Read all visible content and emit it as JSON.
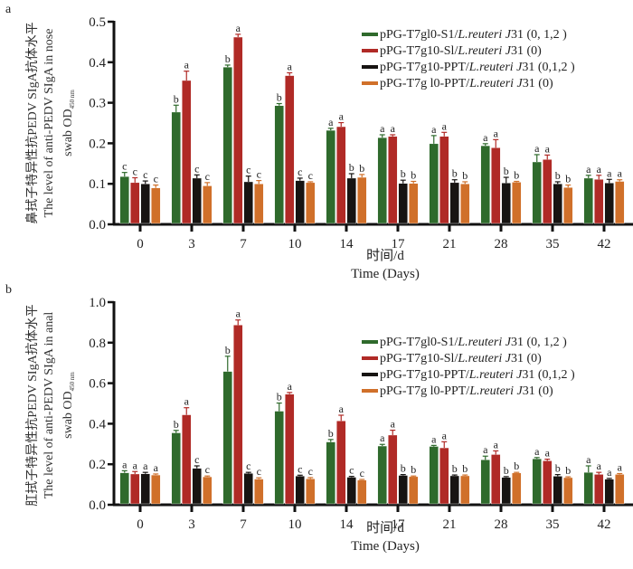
{
  "colors": {
    "green": "#2f6a2c",
    "red": "#b02a26",
    "black": "#171412",
    "orange": "#d0702a"
  },
  "legend": [
    {
      "prefix": "pPG-T7gl0-S1/",
      "italic": "L.reuteri J",
      "suffix": "31 (0, 1,2 )",
      "color_key": "green"
    },
    {
      "prefix": "pPG-T7g10-Sl/",
      "italic": "L.reuteri J",
      "suffix": "31 (0)",
      "color_key": "red"
    },
    {
      "prefix": "pPG-T7g10-PPT/",
      "italic": "L.reuteri J",
      "suffix": "31 (0,1,2 )",
      "color_key": "black"
    },
    {
      "prefix": "pPG-T7g l0-PPT/",
      "italic": "L.reuteri J",
      "suffix": "31 (0)",
      "color_key": "orange"
    }
  ],
  "chart_data": [
    {
      "type": "bar",
      "panel_label": "a",
      "title": "",
      "ylabel_cn": "鼻拭子特异性抗PEDV SIgA抗体水平",
      "ylabel_en": "The level of anti-PEDV SIgA in nose",
      "ylabel_en2": "swab OD",
      "ylabel_sub": "450 nm",
      "xlabel_cn": "时间/d",
      "xlabel_en": "Time (Days)",
      "ylim": [
        0,
        0.5
      ],
      "yticks": [
        "0.0",
        "0.1",
        "0.2",
        "0.3",
        "0.4",
        "0.5"
      ],
      "ytick_values": [
        0,
        0.1,
        0.2,
        0.3,
        0.4,
        0.5
      ],
      "categories": [
        "0",
        "3",
        "7",
        "10",
        "14",
        "17",
        "21",
        "28",
        "35",
        "42"
      ],
      "legend_position": "top-right",
      "series": [
        {
          "name": "pPG-T7gl0-S1/L.reuteri J31 (0, 1,2 )",
          "color_key": "green",
          "values": [
            0.118,
            0.277,
            0.388,
            0.293,
            0.232,
            0.214,
            0.199,
            0.194,
            0.154,
            0.114
          ],
          "errors": [
            0.01,
            0.017,
            0.005,
            0.005,
            0.005,
            0.007,
            0.02,
            0.005,
            0.018,
            0.007
          ],
          "letters": [
            "c",
            "b",
            "b",
            "b",
            "a",
            "a",
            "a",
            "a",
            "a",
            "a"
          ]
        },
        {
          "name": "pPG-T7g10-Sl/L.reuteri J31 (0)",
          "color_key": "red",
          "values": [
            0.103,
            0.355,
            0.462,
            0.367,
            0.241,
            0.217,
            0.217,
            0.189,
            0.16,
            0.111
          ],
          "errors": [
            0.012,
            0.023,
            0.007,
            0.007,
            0.01,
            0.004,
            0.01,
            0.02,
            0.011,
            0.01
          ],
          "letters": [
            "c",
            "a",
            "a",
            "a",
            "a",
            "a",
            "a",
            "a",
            "a",
            "a"
          ]
        },
        {
          "name": "pPG-T7g10-PPT/L.reuteri J31 (0,1,2 )",
          "color_key": "black",
          "values": [
            0.1,
            0.114,
            0.105,
            0.108,
            0.114,
            0.101,
            0.103,
            0.102,
            0.1,
            0.102
          ],
          "errors": [
            0.007,
            0.008,
            0.014,
            0.006,
            0.011,
            0.008,
            0.007,
            0.014,
            0.005,
            0.009
          ],
          "letters": [
            "c",
            "c",
            "c",
            "c",
            "b",
            "b",
            "b",
            "b",
            "b",
            "a"
          ]
        },
        {
          "name": "pPG-T7g l0-PPT/L.reuteri J31 (0)",
          "color_key": "orange",
          "values": [
            0.09,
            0.095,
            0.1,
            0.103,
            0.116,
            0.101,
            0.1,
            0.104,
            0.091,
            0.106
          ],
          "errors": [
            0.007,
            0.008,
            0.008,
            0.002,
            0.007,
            0.005,
            0.005,
            0.002,
            0.006,
            0.004
          ],
          "letters": [
            "c",
            "c",
            "c",
            "c",
            "b",
            "b",
            "b",
            "b",
            "b",
            "a"
          ]
        }
      ]
    },
    {
      "type": "bar",
      "panel_label": "b",
      "title": "",
      "ylabel_cn": "肛拭子特异性抗PEDV SIgA抗体水平",
      "ylabel_en": "The level of anti-PEDV SIgA in anal",
      "ylabel_en2": "swab OD",
      "ylabel_sub": "450 nm",
      "xlabel_cn": "时间/d",
      "xlabel_en": "Time (Days)",
      "ylim": [
        0,
        1.0
      ],
      "yticks": [
        "0.0",
        "0.2",
        "0.4",
        "0.6",
        "0.8",
        "1.0"
      ],
      "ytick_values": [
        0,
        0.2,
        0.4,
        0.6,
        0.8,
        1.0
      ],
      "categories": [
        "0",
        "3",
        "7",
        "10",
        "14",
        "17",
        "21",
        "28",
        "35",
        "42"
      ],
      "legend_position": "top-right",
      "series": [
        {
          "name": "pPG-T7gl0-S1/L.reuteri J31 (0, 1,2 )",
          "color_key": "green",
          "values": [
            0.158,
            0.355,
            0.658,
            0.462,
            0.31,
            0.29,
            0.288,
            0.222,
            0.227,
            0.16
          ],
          "errors": [
            0.01,
            0.012,
            0.075,
            0.04,
            0.012,
            0.008,
            0.005,
            0.018,
            0.006,
            0.032
          ],
          "letters": [
            "a",
            "b",
            "b",
            "b",
            "b",
            "a",
            "a",
            "a",
            "a",
            "a"
          ]
        },
        {
          "name": "pPG-T7g10-Sl/L.reuteri J31 (0)",
          "color_key": "red",
          "values": [
            0.152,
            0.444,
            0.887,
            0.546,
            0.414,
            0.344,
            0.281,
            0.248,
            0.217,
            0.15
          ],
          "errors": [
            0.012,
            0.035,
            0.025,
            0.008,
            0.028,
            0.024,
            0.03,
            0.018,
            0.008,
            0.01
          ],
          "letters": [
            "a",
            "a",
            "a",
            "a",
            "a",
            "a",
            "a",
            "a",
            "a",
            "a"
          ]
        },
        {
          "name": "pPG-T7g10-PPT/L.reuteri J31 (0,1,2 )",
          "color_key": "black",
          "values": [
            0.153,
            0.18,
            0.155,
            0.142,
            0.136,
            0.145,
            0.143,
            0.135,
            0.141,
            0.126
          ],
          "errors": [
            0.007,
            0.012,
            0.005,
            0.004,
            0.004,
            0.004,
            0.004,
            0.004,
            0.008,
            0.004
          ],
          "letters": [
            "a",
            "c",
            "c",
            "c",
            "c",
            "b",
            "b",
            "b",
            "b",
            "a"
          ]
        },
        {
          "name": "pPG-T7g l0-PPT/L.reuteri J31 (0)",
          "color_key": "orange",
          "values": [
            0.147,
            0.138,
            0.127,
            0.128,
            0.122,
            0.139,
            0.143,
            0.157,
            0.134,
            0.15
          ],
          "errors": [
            0.005,
            0.004,
            0.006,
            0.006,
            0.003,
            0.003,
            0.004,
            0.003,
            0.004,
            0.004
          ],
          "letters": [
            "a",
            "c",
            "c",
            "c",
            "c",
            "b",
            "b",
            "b",
            "b",
            "a"
          ]
        }
      ]
    }
  ]
}
